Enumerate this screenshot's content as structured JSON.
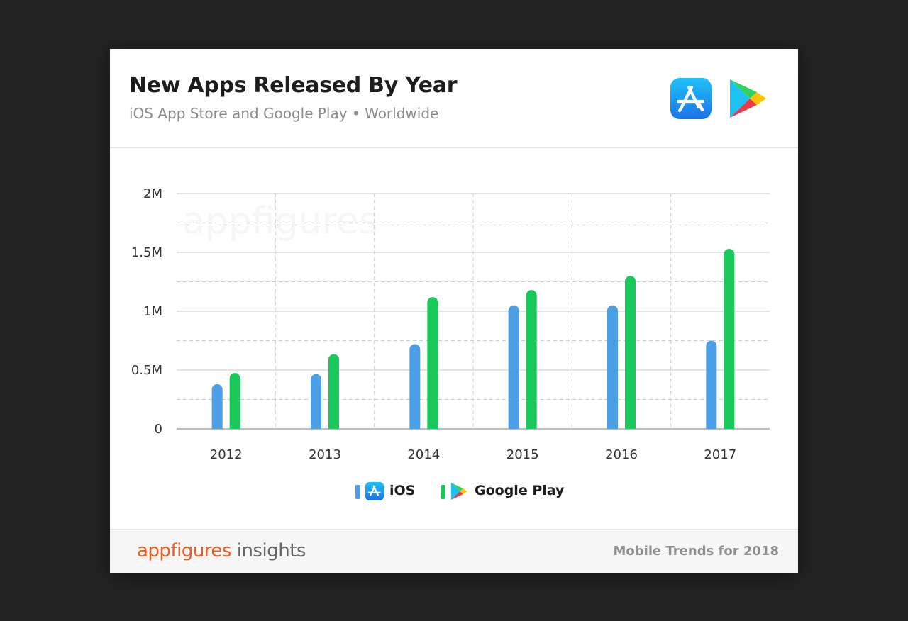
{
  "header": {
    "title": "New Apps Released By Year",
    "subtitle": "iOS App Store and Google Play • Worldwide",
    "icons": [
      "app-store-icon",
      "google-play-icon"
    ]
  },
  "chart_data": {
    "type": "bar",
    "categories": [
      "2012",
      "2013",
      "2014",
      "2015",
      "2016",
      "2017"
    ],
    "series": [
      {
        "name": "iOS",
        "color": "#4a9fe6",
        "values": [
          380000,
          465000,
          720000,
          1050000,
          1050000,
          750000
        ]
      },
      {
        "name": "Google Play",
        "color": "#19c95c",
        "values": [
          475000,
          635000,
          1120000,
          1180000,
          1300000,
          1530000
        ]
      }
    ],
    "y_ticks": [
      {
        "value": 0,
        "label": "0"
      },
      {
        "value": 500000,
        "label": "0.5M"
      },
      {
        "value": 1000000,
        "label": "1M"
      },
      {
        "value": 1500000,
        "label": "1.5M"
      },
      {
        "value": 2000000,
        "label": "2M"
      }
    ],
    "ylim": [
      0,
      2000000
    ],
    "grid": true,
    "legend_position": "bottom-center",
    "watermark": "appfigures"
  },
  "legend": {
    "ios_label": "iOS",
    "google_label": "Google Play"
  },
  "footer": {
    "brand_name": "appfigures",
    "brand_suffix": " insights",
    "right_text": "Mobile Trends for 2018"
  }
}
